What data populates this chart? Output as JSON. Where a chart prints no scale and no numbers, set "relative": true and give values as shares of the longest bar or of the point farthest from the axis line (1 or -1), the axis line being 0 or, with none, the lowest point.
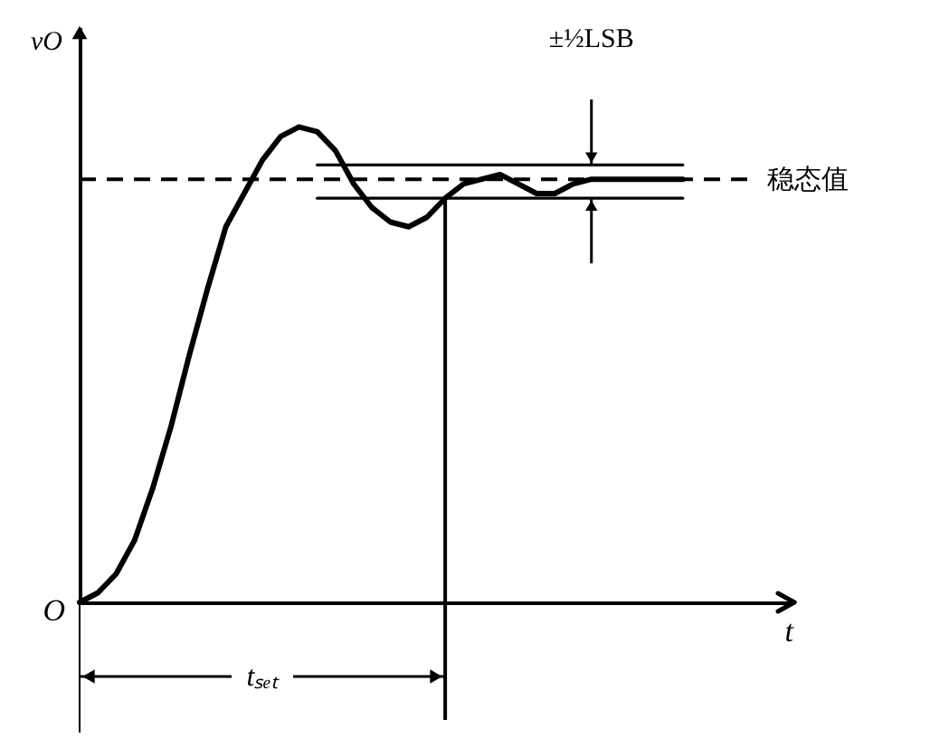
{
  "chart_data": {
    "type": "line",
    "relative": true,
    "xlabel": "t",
    "ylabel": "vO",
    "grid": false,
    "categories": [
      null,
      null,
      null,
      null,
      null,
      null,
      null,
      null,
      null,
      null,
      null,
      null,
      null,
      null,
      null,
      null,
      null,
      null,
      null,
      null,
      null,
      null,
      null,
      null,
      null,
      null,
      null,
      null,
      null,
      null,
      null,
      null,
      null,
      null,
      null,
      null,
      null,
      null,
      null,
      null
    ],
    "series": [
      {
        "color": "#000000",
        "values": [
          0,
          0.02,
          0.06,
          0.13,
          0.24,
          0.37,
          0.52,
          0.66,
          0.79,
          0.86,
          0.93,
          0.98,
          1,
          0.99,
          0.95,
          0.88,
          0.83,
          0.8,
          0.79,
          0.81,
          0.85,
          0.88,
          0.89,
          0.9,
          0.88,
          0.86,
          0.86,
          0.88,
          0.89,
          0.89,
          0.89,
          0.89,
          0.89,
          0.89,
          null,
          null,
          null,
          null,
          null,
          null
        ]
      },
      {
        "color": "#000000",
        "values": [
          null,
          null,
          null,
          null,
          null,
          null,
          null,
          null,
          null,
          null,
          null,
          null,
          null,
          0.92,
          0.92,
          0.92,
          0.92,
          0.92,
          0.92,
          0.92,
          0.92,
          0.92,
          0.92,
          0.92,
          0.92,
          0.92,
          0.92,
          0.92,
          0.92,
          0.92,
          0.92,
          0.92,
          0.92,
          0.92,
          null,
          null,
          null,
          null,
          null,
          null
        ]
      },
      {
        "color": "#000000",
        "values": [
          null,
          null,
          null,
          null,
          null,
          null,
          null,
          null,
          null,
          null,
          null,
          null,
          null,
          0.85,
          0.85,
          0.85,
          0.85,
          0.85,
          0.85,
          0.85,
          0.85,
          0.85,
          0.85,
          0.85,
          0.85,
          0.85,
          0.85,
          0.85,
          0.85,
          0.85,
          0.85,
          0.85,
          0.85,
          0.85,
          null,
          null,
          null,
          null,
          null,
          null
        ]
      }
    ],
    "ref_lines": [
      {
        "axis": "y",
        "value": 0.89,
        "label": "稳态值",
        "line_style": "dashed",
        "color": "#000000"
      }
    ],
    "annotations": [
      "O",
      "±½LSB",
      "tₛₑₜ"
    ]
  }
}
